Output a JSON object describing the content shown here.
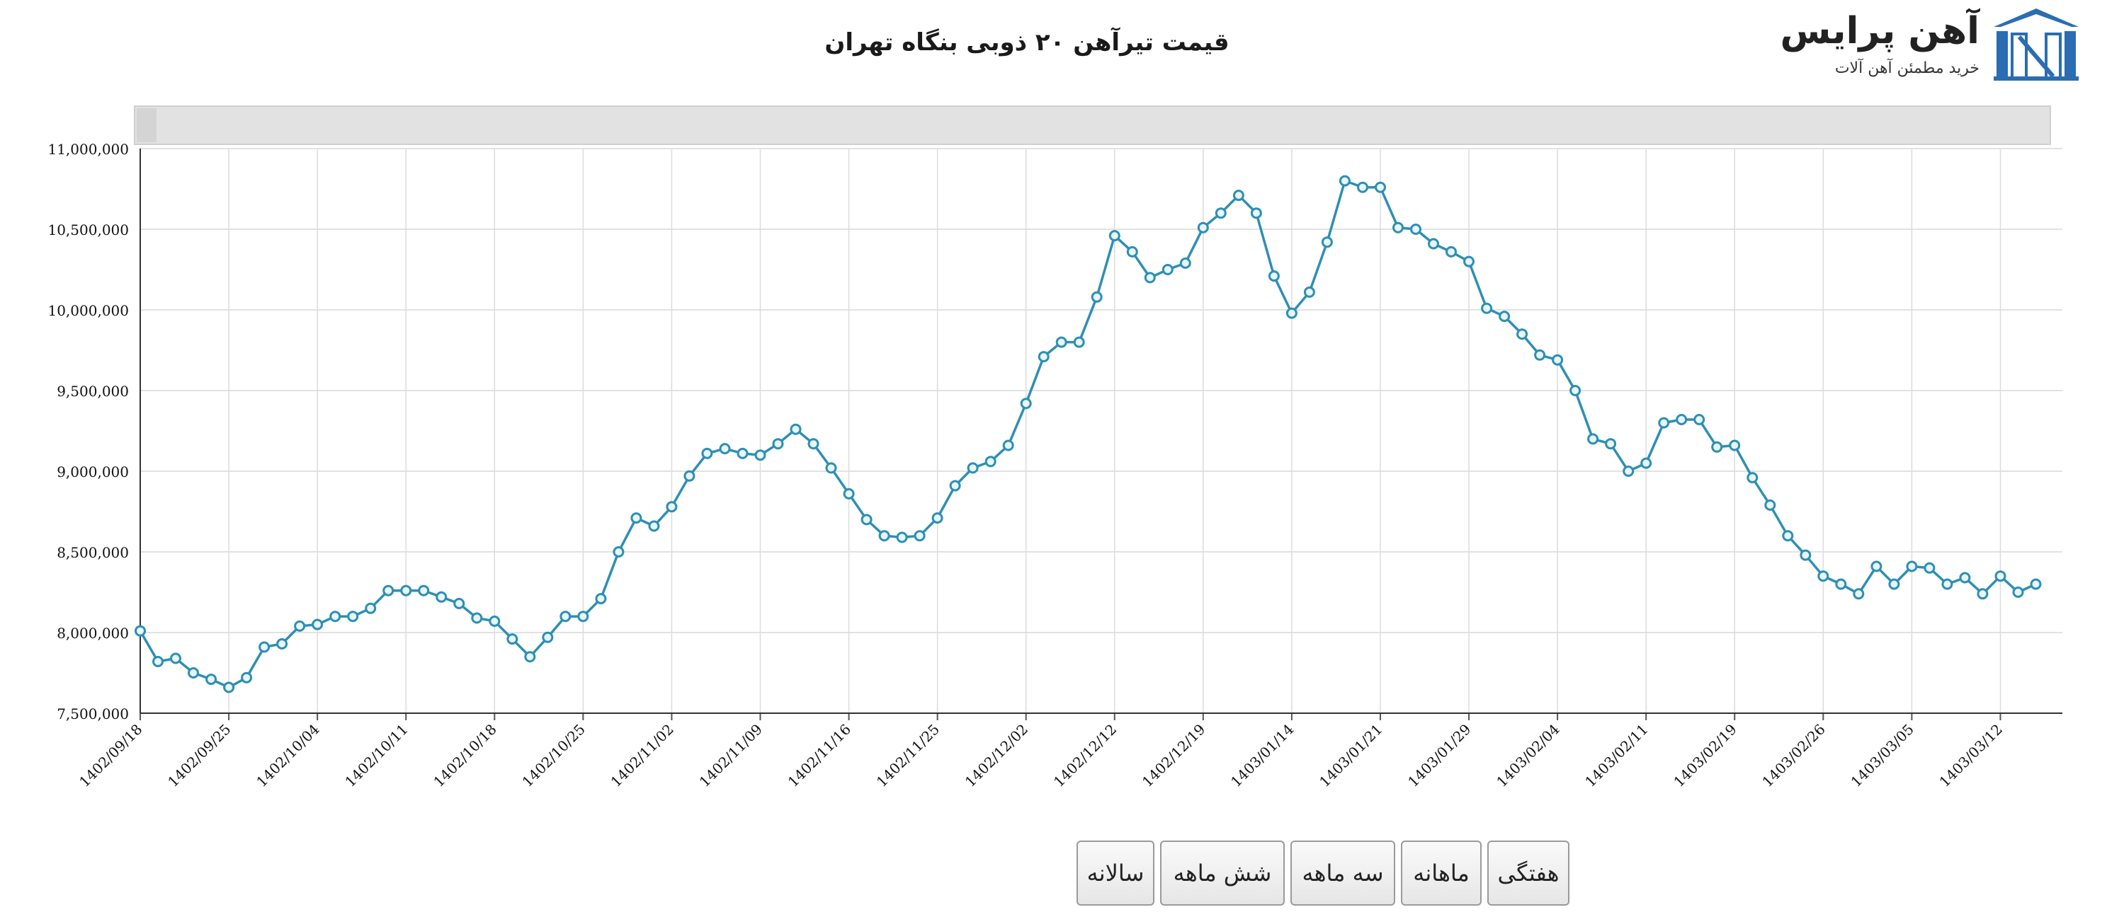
{
  "logo": {
    "name": "آهن پرایس",
    "tagline": "خرید مطمئن آهن آلات",
    "brand_color": "#2a6db3"
  },
  "range_buttons": [
    {
      "label": "سالانه"
    },
    {
      "label": "شش ماهه"
    },
    {
      "label": "سه ماهه"
    },
    {
      "label": "ماهانه"
    },
    {
      "label": "هفتگی"
    }
  ],
  "chart_data": {
    "type": "line",
    "title": "قیمت تیرآهن ۲۰ ذوبی بنگاه تهران",
    "xlabel": "",
    "ylabel": "",
    "ylim": [
      7500000,
      11000000
    ],
    "y_ticks": [
      7500000,
      8000000,
      8500000,
      9000000,
      9500000,
      10000000,
      10500000,
      11000000
    ],
    "y_tick_labels": [
      "7,500,000",
      "8,000,000",
      "8,500,000",
      "9,000,000",
      "9,500,000",
      "10,000,000",
      "10,500,000",
      "11,000,000"
    ],
    "x_tick_labels": [
      "1402/09/18",
      "1402/09/25",
      "1402/10/04",
      "1402/10/11",
      "1402/10/18",
      "1402/10/25",
      "1402/11/02",
      "1402/11/09",
      "1402/11/16",
      "1402/11/25",
      "1402/12/02",
      "1402/12/12",
      "1402/12/19",
      "1403/01/14",
      "1403/01/21",
      "1403/01/29",
      "1403/02/04",
      "1403/02/11",
      "1403/02/19",
      "1403/02/26",
      "1403/03/05",
      "1403/03/12"
    ],
    "points_per_tick": 5,
    "grid": true,
    "line_color": "#2e8fb3",
    "marker_color": "#e8f6fb",
    "series": [
      {
        "values": [
          8010000,
          7820000,
          7840000,
          7750000,
          7710000,
          7660000,
          7720000,
          7910000,
          7930000,
          8040000,
          8050000,
          8100000,
          8100000,
          8150000,
          8260000,
          8260000,
          8260000,
          8220000,
          8180000,
          8090000,
          8070000,
          7960000,
          7850000,
          7970000,
          8100000,
          8100000,
          8210000,
          8500000,
          8710000,
          8660000,
          8780000,
          8970000,
          9110000,
          9140000,
          9110000,
          9100000,
          9170000,
          9260000,
          9170000,
          9020000,
          8860000,
          8700000,
          8600000,
          8590000,
          8600000,
          8710000,
          8910000,
          9020000,
          9060000,
          9160000,
          9420000,
          9710000,
          9800000,
          9800000,
          10080000,
          10460000,
          10360000,
          10200000,
          10250000,
          10290000,
          10510000,
          10600000,
          10710000,
          10600000,
          10210000,
          9980000,
          10110000,
          10420000,
          10800000,
          10760000,
          10760000,
          10510000,
          10500000,
          10410000,
          10360000,
          10300000,
          10010000,
          9960000,
          9850000,
          9720000,
          9690000,
          9500000,
          9200000,
          9170000,
          9000000,
          9050000,
          9300000,
          9320000,
          9320000,
          9150000,
          9160000,
          8960000,
          8790000,
          8600000,
          8480000,
          8350000,
          8300000,
          8240000,
          8410000,
          8300000,
          8410000,
          8400000,
          8300000,
          8340000,
          8240000,
          8350000,
          8250000,
          8300000
        ]
      }
    ]
  }
}
